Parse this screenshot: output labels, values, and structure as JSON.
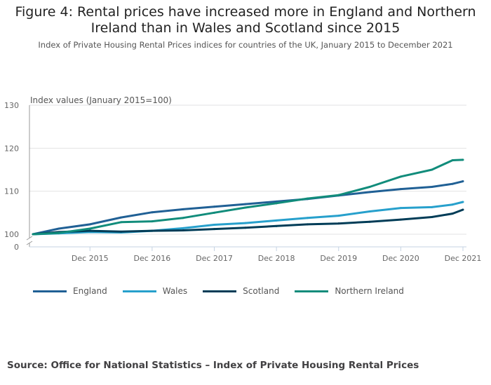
{
  "title": "Figure 4: Rental prices have increased more in England and Northern Ireland than in Wales and Scotland since 2015",
  "subtitle": "Index of Private Housing Rental Prices indices for countries of the UK, January 2015 to December 2021",
  "source": "Source: Office for National Statistics – Index of Private Housing Rental Prices",
  "chart_data": {
    "type": "line",
    "ylabel": "Index values (January 2015=100)",
    "ylim": [
      100,
      130
    ],
    "y_ticks": [
      "0",
      "100",
      "110",
      "120",
      "130"
    ],
    "y_axis_break": true,
    "x_ticks": [
      "Dec 2015",
      "Dec 2016",
      "Dec 2017",
      "Dec 2018",
      "Dec 2019",
      "Dec 2020",
      "Dec 2021"
    ],
    "grid": true,
    "legend_placement": "bottom",
    "x": [
      "Jan 2015",
      "Jun 2015",
      "Dec 2015",
      "Jun 2016",
      "Dec 2016",
      "Jun 2017",
      "Dec 2017",
      "Jun 2018",
      "Dec 2018",
      "Jun 2019",
      "Dec 2019",
      "Jun 2020",
      "Dec 2020",
      "Jun 2021",
      "Oct 2021",
      "Dec 2021"
    ],
    "series": [
      {
        "name": "England",
        "color": "#206095",
        "values": [
          100,
          101.3,
          102.3,
          103.9,
          105.1,
          105.8,
          106.4,
          107.0,
          107.6,
          108.2,
          109.0,
          109.8,
          110.5,
          111.0,
          111.7,
          112.3
        ]
      },
      {
        "name": "Wales",
        "color": "#27a0cc",
        "values": [
          100,
          100.2,
          100.5,
          100.4,
          100.8,
          101.4,
          102.2,
          102.6,
          103.2,
          103.8,
          104.3,
          105.3,
          106.1,
          106.3,
          106.9,
          107.5
        ]
      },
      {
        "name": "Scotland",
        "color": "#003c57",
        "values": [
          100,
          100.5,
          100.8,
          100.6,
          100.8,
          100.9,
          101.2,
          101.5,
          101.9,
          102.3,
          102.5,
          102.9,
          103.4,
          104.0,
          104.8,
          105.7
        ]
      },
      {
        "name": "Northern Ireland",
        "color": "#118c7b",
        "values": [
          100,
          100.3,
          101.3,
          102.8,
          103.0,
          103.8,
          105.0,
          106.2,
          107.2,
          108.3,
          109.1,
          111.0,
          113.4,
          115.0,
          117.2,
          117.3
        ]
      }
    ]
  }
}
